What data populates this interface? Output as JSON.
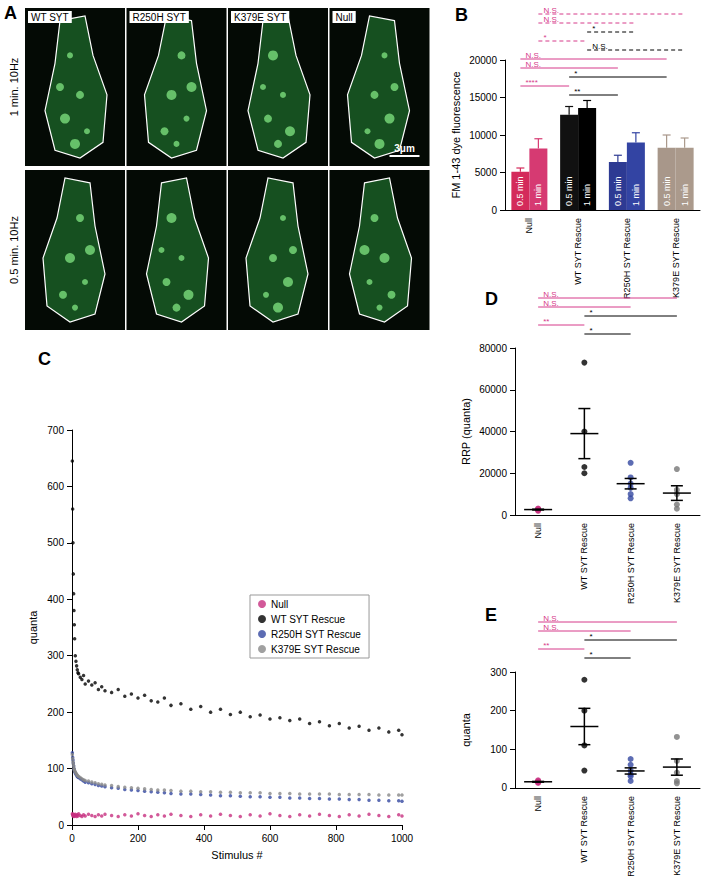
{
  "image_panel": {
    "panel_label": "A",
    "columns": [
      "WT SYT",
      "R250H SYT",
      "K379E SYT",
      "Null"
    ],
    "rows": [
      "1 min. 10Hz",
      "0.5 min. 10Hz"
    ],
    "scale_bar": "3μm"
  },
  "chart_data": [
    {
      "panel_label": "B",
      "type": "bar",
      "y_label": "FM 1-43 dye fluorescence",
      "categories": [
        "Null",
        "WT SYT Rescue",
        "R250H SYT Rescue",
        "K379E SYT Rescue"
      ],
      "series": [
        {
          "name": "0.5 min",
          "values": [
            5100,
            12700,
            6400,
            8300
          ],
          "errors": [
            500,
            1100,
            900,
            1700
          ],
          "colors": [
            "#d42a5b",
            "#111111",
            "#2d3a93",
            "#a8978a"
          ]
        },
        {
          "name": "1 min",
          "values": [
            8200,
            13600,
            9000,
            8300
          ],
          "errors": [
            1300,
            1000,
            1300,
            1300
          ],
          "colors": [
            "#d63a72",
            "#000000",
            "#3344a3",
            "#ab9a8c"
          ]
        }
      ],
      "ylim": [
        0,
        20000
      ],
      "yticks": [
        0,
        5000,
        10000,
        15000,
        20000
      ],
      "grid": false,
      "comparisons": [
        {
          "from": "Null",
          "from_series": "1 min",
          "to": "K379E SYT Rescue",
          "to_series": "1 min",
          "label": "N.S.",
          "color": "#d63a8a",
          "line_style": "dashed"
        },
        {
          "from": "Null",
          "from_series": "1 min",
          "to": "R250H SYT Rescue",
          "to_series": "1 min",
          "label": "N.S.",
          "color": "#d63a8a",
          "line_style": "dashed"
        },
        {
          "from": "WT SYT Rescue",
          "from_series": "1 min",
          "to": "R250H SYT Rescue",
          "to_series": "1 min",
          "label": "*",
          "color": "#000000",
          "line_style": "dashed"
        },
        {
          "from": "Null",
          "from_series": "1 min",
          "to": "WT SYT Rescue",
          "to_series": "1 min",
          "label": "*",
          "color": "#d63a8a",
          "line_style": "dashed"
        },
        {
          "from": "WT SYT Rescue",
          "from_series": "1 min",
          "to": "K379E SYT Rescue",
          "to_series": "1 min",
          "label": "N.S.",
          "color": "#000000",
          "line_style": "dashed"
        },
        {
          "from": "Null",
          "from_series": "0.5 min",
          "to": "K379E SYT Rescue",
          "to_series": "0.5 min",
          "label": "N.S.",
          "color": "#d63a8a",
          "line_style": "solid"
        },
        {
          "from": "Null",
          "from_series": "0.5 min",
          "to": "R250H SYT Rescue",
          "to_series": "0.5 min",
          "label": "N.S.",
          "color": "#d63a8a",
          "line_style": "solid"
        },
        {
          "from": "WT SYT Rescue",
          "from_series": "0.5 min",
          "to": "K379E SYT Rescue",
          "to_series": "0.5 min",
          "label": "*",
          "color": "#000000",
          "line_style": "solid"
        },
        {
          "from": "Null",
          "from_series": "0.5 min",
          "to": "WT SYT Rescue",
          "to_series": "0.5 min",
          "label": "****",
          "color": "#d63a8a",
          "line_style": "solid"
        },
        {
          "from": "WT SYT Rescue",
          "from_series": "0.5 min",
          "to": "R250H SYT Rescue",
          "to_series": "0.5 min",
          "label": "**",
          "color": "#000000",
          "line_style": "solid"
        }
      ]
    },
    {
      "panel_label": "C",
      "type": "scatter",
      "x_label": "Stimulus #",
      "y_label": "quanta",
      "xlim": [
        0,
        1000
      ],
      "xticks": [
        0,
        200,
        400,
        600,
        800,
        1000
      ],
      "ylim": [
        0,
        700
      ],
      "yticks": [
        0,
        100,
        200,
        300,
        400,
        500,
        600,
        700
      ],
      "grid": false,
      "legend": "right",
      "series": [
        {
          "name": "Null",
          "color": "#c72f7f",
          "x": [
            1,
            2,
            3,
            4,
            5,
            6,
            7,
            8,
            10,
            12,
            14,
            16,
            18,
            20,
            25,
            30,
            35,
            40,
            50,
            60,
            70,
            80,
            90,
            100,
            120,
            140,
            160,
            180,
            200,
            220,
            240,
            260,
            280,
            300,
            330,
            360,
            390,
            420,
            450,
            480,
            510,
            540,
            570,
            600,
            630,
            660,
            690,
            720,
            750,
            780,
            810,
            840,
            870,
            900,
            930,
            960,
            990,
            1000
          ],
          "values": [
            20,
            18,
            16,
            19,
            17,
            15,
            18,
            16,
            19,
            17,
            15,
            18,
            16,
            20,
            17,
            15,
            18,
            16,
            19,
            17,
            15,
            18,
            16,
            19,
            17,
            15,
            18,
            16,
            20,
            17,
            15,
            18,
            16,
            19,
            17,
            15,
            18,
            16,
            19,
            17,
            15,
            18,
            16,
            20,
            17,
            15,
            18,
            16,
            19,
            17,
            15,
            18,
            16,
            19,
            17,
            15,
            18,
            16
          ]
        },
        {
          "name": "WT SYT Rescue",
          "color": "#000000",
          "x": [
            1,
            2,
            3,
            4,
            5,
            6,
            7,
            8,
            10,
            12,
            14,
            16,
            18,
            20,
            25,
            30,
            35,
            40,
            50,
            60,
            70,
            80,
            90,
            100,
            120,
            140,
            160,
            180,
            200,
            220,
            240,
            260,
            280,
            300,
            330,
            360,
            390,
            420,
            450,
            480,
            510,
            540,
            570,
            600,
            630,
            660,
            690,
            720,
            750,
            780,
            810,
            840,
            870,
            900,
            930,
            960,
            990,
            1000
          ],
          "values": [
            645,
            560,
            500,
            445,
            410,
            380,
            355,
            330,
            300,
            290,
            282,
            275,
            270,
            268,
            262,
            258,
            265,
            250,
            255,
            248,
            252,
            240,
            245,
            238,
            235,
            240,
            228,
            232,
            225,
            230,
            220,
            218,
            225,
            212,
            215,
            205,
            210,
            200,
            205,
            196,
            200,
            192,
            195,
            188,
            190,
            185,
            188,
            180,
            183,
            176,
            180,
            172,
            175,
            168,
            172,
            165,
            168,
            160
          ]
        },
        {
          "name": "R250H SYT Rescue",
          "color": "#3347a0",
          "x": [
            1,
            2,
            3,
            4,
            5,
            6,
            7,
            8,
            10,
            12,
            14,
            16,
            18,
            20,
            25,
            30,
            35,
            40,
            50,
            60,
            70,
            80,
            90,
            100,
            120,
            140,
            160,
            180,
            200,
            220,
            240,
            260,
            280,
            300,
            330,
            360,
            390,
            420,
            450,
            480,
            510,
            540,
            570,
            600,
            630,
            660,
            690,
            720,
            750,
            780,
            810,
            840,
            870,
            900,
            930,
            960,
            990,
            1000
          ],
          "values": [
            128,
            120,
            115,
            110,
            105,
            100,
            97,
            95,
            92,
            90,
            88,
            86,
            85,
            84,
            82,
            80,
            78,
            76,
            75,
            73,
            72,
            70,
            69,
            68,
            66,
            65,
            63,
            62,
            61,
            60,
            59,
            58,
            57,
            56,
            55,
            55,
            54,
            53,
            52,
            52,
            51,
            50,
            50,
            49,
            49,
            48,
            48,
            47,
            47,
            46,
            46,
            45,
            45,
            44,
            44,
            43,
            43,
            42
          ]
        },
        {
          "name": "K379E SYT Rescue",
          "color": "#888888",
          "x": [
            1,
            2,
            3,
            4,
            5,
            6,
            7,
            8,
            10,
            12,
            14,
            16,
            18,
            20,
            25,
            30,
            35,
            40,
            50,
            60,
            70,
            80,
            90,
            100,
            120,
            140,
            160,
            180,
            200,
            220,
            240,
            260,
            280,
            300,
            330,
            360,
            390,
            420,
            450,
            480,
            510,
            540,
            570,
            600,
            630,
            660,
            690,
            720,
            750,
            780,
            810,
            840,
            870,
            900,
            930,
            960,
            990,
            1000
          ],
          "values": [
            125,
            118,
            112,
            108,
            104,
            100,
            98,
            96,
            94,
            92,
            90,
            88,
            87,
            86,
            84,
            82,
            80,
            79,
            78,
            76,
            75,
            73,
            72,
            71,
            70,
            68,
            67,
            66,
            65,
            64,
            63,
            62,
            62,
            61,
            60,
            60,
            59,
            59,
            58,
            58,
            57,
            57,
            57,
            56,
            56,
            56,
            55,
            55,
            55,
            55,
            54,
            54,
            54,
            54,
            53,
            53,
            53,
            53
          ]
        }
      ]
    },
    {
      "panel_label": "D",
      "type": "strip",
      "y_label": "RRP (quanta)",
      "categories": [
        "Null",
        "WT SYT Rescue",
        "R250H SYT Rescue",
        "K379E SYT Rescue"
      ],
      "colors": [
        "#c72f7f",
        "#000000",
        "#3347a0",
        "#777777"
      ],
      "points": [
        [
          2000,
          2300,
          2600,
          2900,
          3100
        ],
        [
          73000,
          40000,
          23000,
          20000
        ],
        [
          25000,
          18000,
          15000,
          13000,
          10000,
          8000
        ],
        [
          22000,
          12000,
          10000,
          5000,
          3000
        ]
      ],
      "means": [
        2600,
        39000,
        15000,
        10500
      ],
      "errors": [
        200,
        12000,
        2500,
        3500
      ],
      "ylim": [
        0,
        80000
      ],
      "yticks": [
        0,
        20000,
        40000,
        60000,
        80000
      ],
      "grid": false,
      "comparisons": [
        {
          "from": "Null",
          "to": "K379E SYT Rescue",
          "label": "N.S.",
          "color": "#d63a8a",
          "line_style": "solid"
        },
        {
          "from": "Null",
          "to": "R250H SYT Rescue",
          "label": "N.S.",
          "color": "#d63a8a",
          "line_style": "solid"
        },
        {
          "from": "WT SYT Rescue",
          "to": "K379E SYT Rescue",
          "label": "*",
          "color": "#000000",
          "line_style": "solid"
        },
        {
          "from": "Null",
          "to": "WT SYT Rescue",
          "label": "**",
          "color": "#d63a8a",
          "line_style": "solid"
        },
        {
          "from": "WT SYT Rescue",
          "to": "R250H SYT Rescue",
          "label": "*",
          "color": "#000000",
          "line_style": "solid"
        }
      ]
    },
    {
      "panel_label": "E",
      "type": "strip",
      "y_label": "quanta",
      "categories": [
        "Null",
        "WT SYT Rescue",
        "R250H SYT Rescue",
        "K379E SYT Rescue"
      ],
      "colors": [
        "#c72f7f",
        "#000000",
        "#3347a0",
        "#777777"
      ],
      "points": [
        [
          13,
          15,
          16,
          18,
          20
        ],
        [
          280,
          200,
          110,
          45
        ],
        [
          75,
          60,
          45,
          35,
          30,
          18
        ],
        [
          132,
          70,
          40,
          18,
          12
        ]
      ],
      "means": [
        16,
        159,
        44,
        54
      ],
      "errors": [
        1,
        47,
        8,
        21
      ],
      "ylim": [
        0,
        300
      ],
      "yticks": [
        0,
        100,
        200,
        300
      ],
      "grid": false,
      "comparisons": [
        {
          "from": "Null",
          "to": "K379E SYT Rescue",
          "label": "N.S.",
          "color": "#d63a8a",
          "line_style": "solid"
        },
        {
          "from": "Null",
          "to": "R250H SYT Rescue",
          "label": "N.S.",
          "color": "#d63a8a",
          "line_style": "solid"
        },
        {
          "from": "WT SYT Rescue",
          "to": "K379E SYT Rescue",
          "label": "*",
          "color": "#000000",
          "line_style": "solid"
        },
        {
          "from": "Null",
          "to": "WT SYT Rescue",
          "label": "**",
          "color": "#d63a8a",
          "line_style": "solid"
        },
        {
          "from": "WT SYT Rescue",
          "to": "R250H SYT Rescue",
          "label": "*",
          "color": "#000000",
          "line_style": "solid"
        }
      ]
    }
  ]
}
